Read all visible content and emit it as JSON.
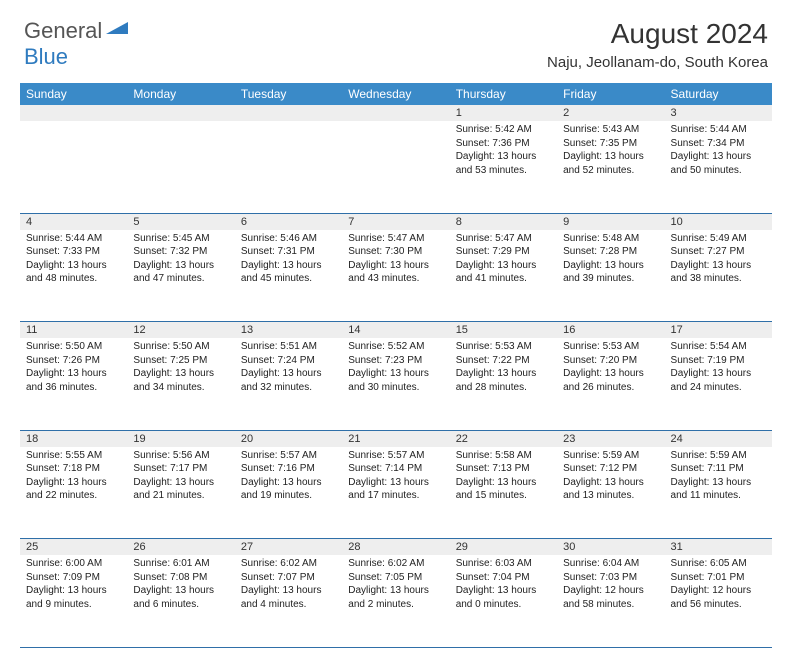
{
  "brand": {
    "part1": "General",
    "part2": "Blue"
  },
  "title": "August 2024",
  "location": "Naju, Jeollanam-do, South Korea",
  "colors": {
    "header_bg": "#3a8ac8",
    "header_text": "#ffffff",
    "daynum_bg": "#eeeeee",
    "row_border": "#2f6fa8",
    "brand_gray": "#555555",
    "brand_blue": "#2f7bbf"
  },
  "day_headers": [
    "Sunday",
    "Monday",
    "Tuesday",
    "Wednesday",
    "Thursday",
    "Friday",
    "Saturday"
  ],
  "weeks": [
    {
      "nums": [
        "",
        "",
        "",
        "",
        "1",
        "2",
        "3"
      ],
      "cells": [
        null,
        null,
        null,
        null,
        {
          "sunrise": "Sunrise: 5:42 AM",
          "sunset": "Sunset: 7:36 PM",
          "day1": "Daylight: 13 hours",
          "day2": "and 53 minutes."
        },
        {
          "sunrise": "Sunrise: 5:43 AM",
          "sunset": "Sunset: 7:35 PM",
          "day1": "Daylight: 13 hours",
          "day2": "and 52 minutes."
        },
        {
          "sunrise": "Sunrise: 5:44 AM",
          "sunset": "Sunset: 7:34 PM",
          "day1": "Daylight: 13 hours",
          "day2": "and 50 minutes."
        }
      ]
    },
    {
      "nums": [
        "4",
        "5",
        "6",
        "7",
        "8",
        "9",
        "10"
      ],
      "cells": [
        {
          "sunrise": "Sunrise: 5:44 AM",
          "sunset": "Sunset: 7:33 PM",
          "day1": "Daylight: 13 hours",
          "day2": "and 48 minutes."
        },
        {
          "sunrise": "Sunrise: 5:45 AM",
          "sunset": "Sunset: 7:32 PM",
          "day1": "Daylight: 13 hours",
          "day2": "and 47 minutes."
        },
        {
          "sunrise": "Sunrise: 5:46 AM",
          "sunset": "Sunset: 7:31 PM",
          "day1": "Daylight: 13 hours",
          "day2": "and 45 minutes."
        },
        {
          "sunrise": "Sunrise: 5:47 AM",
          "sunset": "Sunset: 7:30 PM",
          "day1": "Daylight: 13 hours",
          "day2": "and 43 minutes."
        },
        {
          "sunrise": "Sunrise: 5:47 AM",
          "sunset": "Sunset: 7:29 PM",
          "day1": "Daylight: 13 hours",
          "day2": "and 41 minutes."
        },
        {
          "sunrise": "Sunrise: 5:48 AM",
          "sunset": "Sunset: 7:28 PM",
          "day1": "Daylight: 13 hours",
          "day2": "and 39 minutes."
        },
        {
          "sunrise": "Sunrise: 5:49 AM",
          "sunset": "Sunset: 7:27 PM",
          "day1": "Daylight: 13 hours",
          "day2": "and 38 minutes."
        }
      ]
    },
    {
      "nums": [
        "11",
        "12",
        "13",
        "14",
        "15",
        "16",
        "17"
      ],
      "cells": [
        {
          "sunrise": "Sunrise: 5:50 AM",
          "sunset": "Sunset: 7:26 PM",
          "day1": "Daylight: 13 hours",
          "day2": "and 36 minutes."
        },
        {
          "sunrise": "Sunrise: 5:50 AM",
          "sunset": "Sunset: 7:25 PM",
          "day1": "Daylight: 13 hours",
          "day2": "and 34 minutes."
        },
        {
          "sunrise": "Sunrise: 5:51 AM",
          "sunset": "Sunset: 7:24 PM",
          "day1": "Daylight: 13 hours",
          "day2": "and 32 minutes."
        },
        {
          "sunrise": "Sunrise: 5:52 AM",
          "sunset": "Sunset: 7:23 PM",
          "day1": "Daylight: 13 hours",
          "day2": "and 30 minutes."
        },
        {
          "sunrise": "Sunrise: 5:53 AM",
          "sunset": "Sunset: 7:22 PM",
          "day1": "Daylight: 13 hours",
          "day2": "and 28 minutes."
        },
        {
          "sunrise": "Sunrise: 5:53 AM",
          "sunset": "Sunset: 7:20 PM",
          "day1": "Daylight: 13 hours",
          "day2": "and 26 minutes."
        },
        {
          "sunrise": "Sunrise: 5:54 AM",
          "sunset": "Sunset: 7:19 PM",
          "day1": "Daylight: 13 hours",
          "day2": "and 24 minutes."
        }
      ]
    },
    {
      "nums": [
        "18",
        "19",
        "20",
        "21",
        "22",
        "23",
        "24"
      ],
      "cells": [
        {
          "sunrise": "Sunrise: 5:55 AM",
          "sunset": "Sunset: 7:18 PM",
          "day1": "Daylight: 13 hours",
          "day2": "and 22 minutes."
        },
        {
          "sunrise": "Sunrise: 5:56 AM",
          "sunset": "Sunset: 7:17 PM",
          "day1": "Daylight: 13 hours",
          "day2": "and 21 minutes."
        },
        {
          "sunrise": "Sunrise: 5:57 AM",
          "sunset": "Sunset: 7:16 PM",
          "day1": "Daylight: 13 hours",
          "day2": "and 19 minutes."
        },
        {
          "sunrise": "Sunrise: 5:57 AM",
          "sunset": "Sunset: 7:14 PM",
          "day1": "Daylight: 13 hours",
          "day2": "and 17 minutes."
        },
        {
          "sunrise": "Sunrise: 5:58 AM",
          "sunset": "Sunset: 7:13 PM",
          "day1": "Daylight: 13 hours",
          "day2": "and 15 minutes."
        },
        {
          "sunrise": "Sunrise: 5:59 AM",
          "sunset": "Sunset: 7:12 PM",
          "day1": "Daylight: 13 hours",
          "day2": "and 13 minutes."
        },
        {
          "sunrise": "Sunrise: 5:59 AM",
          "sunset": "Sunset: 7:11 PM",
          "day1": "Daylight: 13 hours",
          "day2": "and 11 minutes."
        }
      ]
    },
    {
      "nums": [
        "25",
        "26",
        "27",
        "28",
        "29",
        "30",
        "31"
      ],
      "cells": [
        {
          "sunrise": "Sunrise: 6:00 AM",
          "sunset": "Sunset: 7:09 PM",
          "day1": "Daylight: 13 hours",
          "day2": "and 9 minutes."
        },
        {
          "sunrise": "Sunrise: 6:01 AM",
          "sunset": "Sunset: 7:08 PM",
          "day1": "Daylight: 13 hours",
          "day2": "and 6 minutes."
        },
        {
          "sunrise": "Sunrise: 6:02 AM",
          "sunset": "Sunset: 7:07 PM",
          "day1": "Daylight: 13 hours",
          "day2": "and 4 minutes."
        },
        {
          "sunrise": "Sunrise: 6:02 AM",
          "sunset": "Sunset: 7:05 PM",
          "day1": "Daylight: 13 hours",
          "day2": "and 2 minutes."
        },
        {
          "sunrise": "Sunrise: 6:03 AM",
          "sunset": "Sunset: 7:04 PM",
          "day1": "Daylight: 13 hours",
          "day2": "and 0 minutes."
        },
        {
          "sunrise": "Sunrise: 6:04 AM",
          "sunset": "Sunset: 7:03 PM",
          "day1": "Daylight: 12 hours",
          "day2": "and 58 minutes."
        },
        {
          "sunrise": "Sunrise: 6:05 AM",
          "sunset": "Sunset: 7:01 PM",
          "day1": "Daylight: 12 hours",
          "day2": "and 56 minutes."
        }
      ]
    }
  ]
}
